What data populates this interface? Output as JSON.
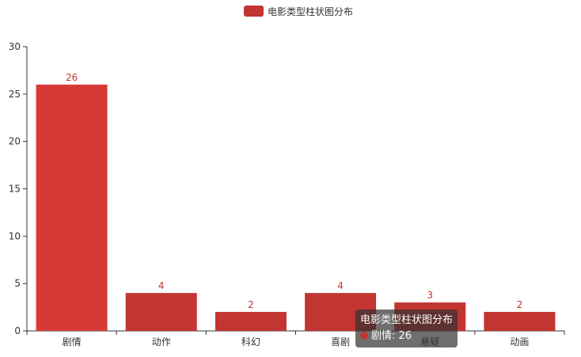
{
  "chart_data": {
    "type": "bar",
    "legend": {
      "label": "电影类型柱状图分布",
      "placement": "top-center"
    },
    "categories": [
      "剧情",
      "动作",
      "科幻",
      "喜剧",
      "悬疑",
      "动画"
    ],
    "series": [
      {
        "name": "电影类型柱状图分布",
        "values": [
          26,
          4,
          2,
          4,
          3,
          2
        ]
      }
    ],
    "ylim": [
      0,
      30
    ],
    "yticks": [
      0,
      5,
      10,
      15,
      20,
      25,
      30
    ],
    "grid": false,
    "colors": {
      "bar": "#c23531",
      "bar_hover": "#d63a35",
      "label": "#c23531",
      "axis": "#333333"
    },
    "tooltip": {
      "title": "电影类型柱状图分布",
      "label": "剧情",
      "value": "26"
    }
  }
}
